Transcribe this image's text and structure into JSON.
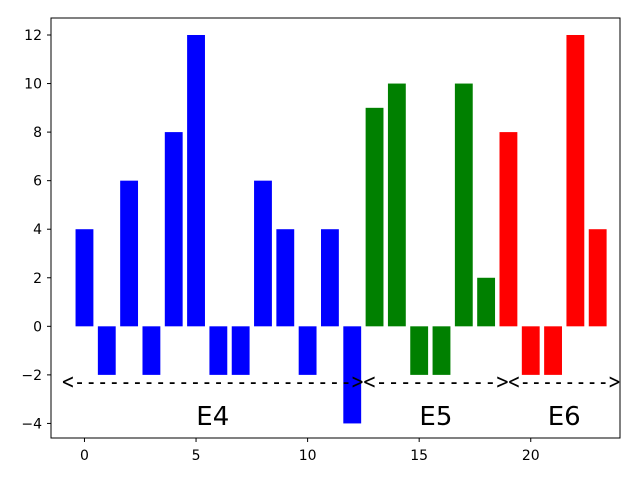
{
  "chart_data": {
    "type": "bar",
    "title": "",
    "xlabel": "",
    "ylabel": "",
    "x": [
      0,
      1,
      2,
      3,
      4,
      5,
      6,
      7,
      8,
      9,
      10,
      11,
      12,
      13,
      14,
      15,
      16,
      17,
      18,
      19,
      20,
      21,
      22,
      23
    ],
    "values": [
      4,
      -2,
      6,
      -2,
      8,
      12,
      -2,
      -2,
      6,
      4,
      -2,
      4,
      -4,
      9,
      10,
      -2,
      -2,
      10,
      2,
      8,
      -2,
      -2,
      12,
      4
    ],
    "bar_colors": [
      "#0000ff",
      "#0000ff",
      "#0000ff",
      "#0000ff",
      "#0000ff",
      "#0000ff",
      "#0000ff",
      "#0000ff",
      "#0000ff",
      "#0000ff",
      "#0000ff",
      "#0000ff",
      "#0000ff",
      "#008000",
      "#008000",
      "#008000",
      "#008000",
      "#008000",
      "#008000",
      "#ff0000",
      "#ff0000",
      "#ff0000",
      "#ff0000",
      "#ff0000"
    ],
    "xlim": [
      -1.5,
      24.0
    ],
    "ylim": [
      -4.6,
      12.7
    ],
    "xticks": [
      0,
      5,
      10,
      15,
      20
    ],
    "xtick_labels": [
      "0",
      "5",
      "10",
      "15",
      "20"
    ],
    "yticks": [
      -4,
      -2,
      0,
      2,
      4,
      6,
      8,
      10,
      12
    ],
    "ytick_labels": [
      "−4",
      "−2",
      "0",
      "2",
      "4",
      "6",
      "8",
      "10",
      "12"
    ],
    "grid": false,
    "groups": [
      {
        "label": "E4",
        "start": -1,
        "end": 12.5,
        "arrow_text": "<------------------------>"
      },
      {
        "label": "E5",
        "start": 12.5,
        "end": 19,
        "arrow_text": "<---------->"
      },
      {
        "label": "E6",
        "start": 19,
        "end": 24,
        "arrow_text": "<-------->"
      }
    ]
  }
}
